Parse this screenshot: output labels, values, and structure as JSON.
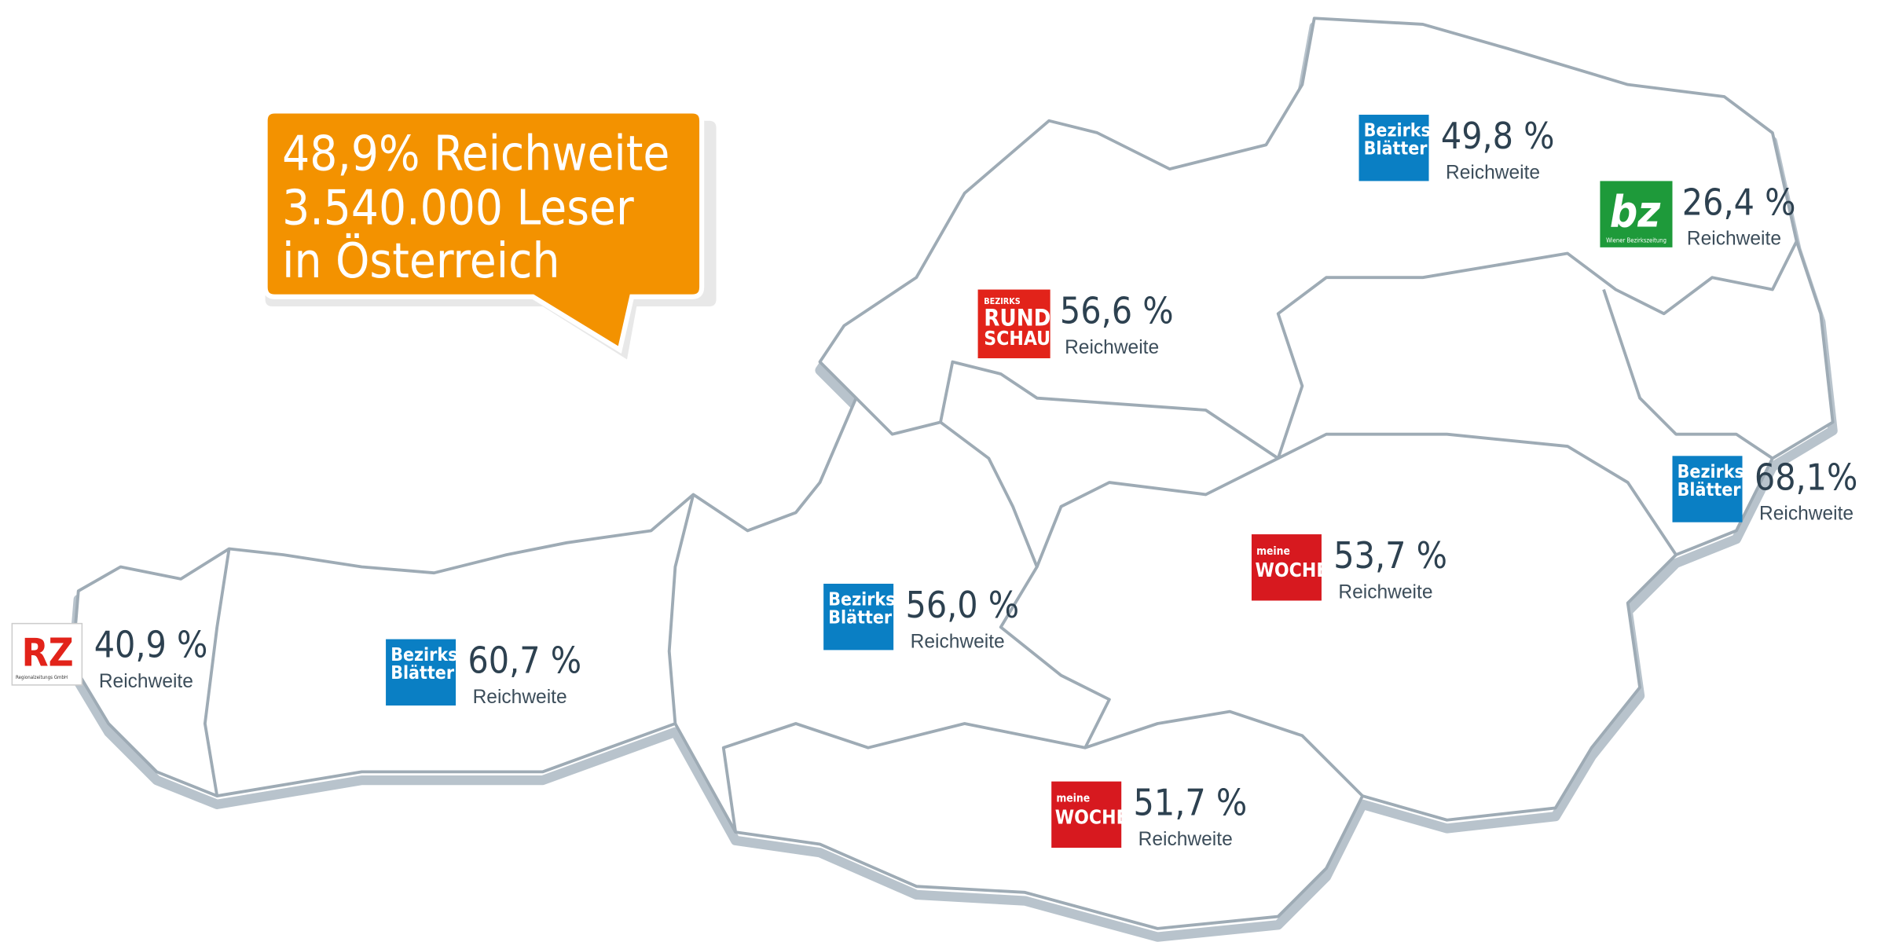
{
  "callout": {
    "lines": [
      "48,9% Reichweite",
      "3.540.000 Leser",
      "in Österreich"
    ]
  },
  "regions": [
    {
      "logo": [
        "RZ",
        "Regionalzeitungs GmbH"
      ],
      "value": "40,9 %",
      "caption": "Reichweite"
    },
    {
      "logo": [
        "Bezirks",
        "Blätter"
      ],
      "value": "60,7 %",
      "caption": "Reichweite"
    },
    {
      "logo": [
        "Bezirks",
        "Blätter"
      ],
      "value": "56,0 %",
      "caption": "Reichweite"
    },
    {
      "logo": [
        "BEZIRKS",
        "RUND",
        "SCHAU"
      ],
      "value": "56,6 %",
      "caption": "Reichweite"
    },
    {
      "logo": [
        "Bezirks",
        "Blätter"
      ],
      "value": "49,8 %",
      "caption": "Reichweite"
    },
    {
      "logo": [
        "bz",
        "Wiener Bezirkszeitung"
      ],
      "value": "26,4 %",
      "caption": "Reichweite"
    },
    {
      "logo": [
        "Bezirks",
        "Blätter"
      ],
      "value": "68,1%",
      "caption": "Reichweite"
    },
    {
      "logo": [
        "meine",
        "WOCHE"
      ],
      "value": "53,7 %",
      "caption": "Reichweite"
    },
    {
      "logo": [
        "meine",
        "WOCHE"
      ],
      "value": "51,7 %",
      "caption": "Reichweite"
    }
  ]
}
